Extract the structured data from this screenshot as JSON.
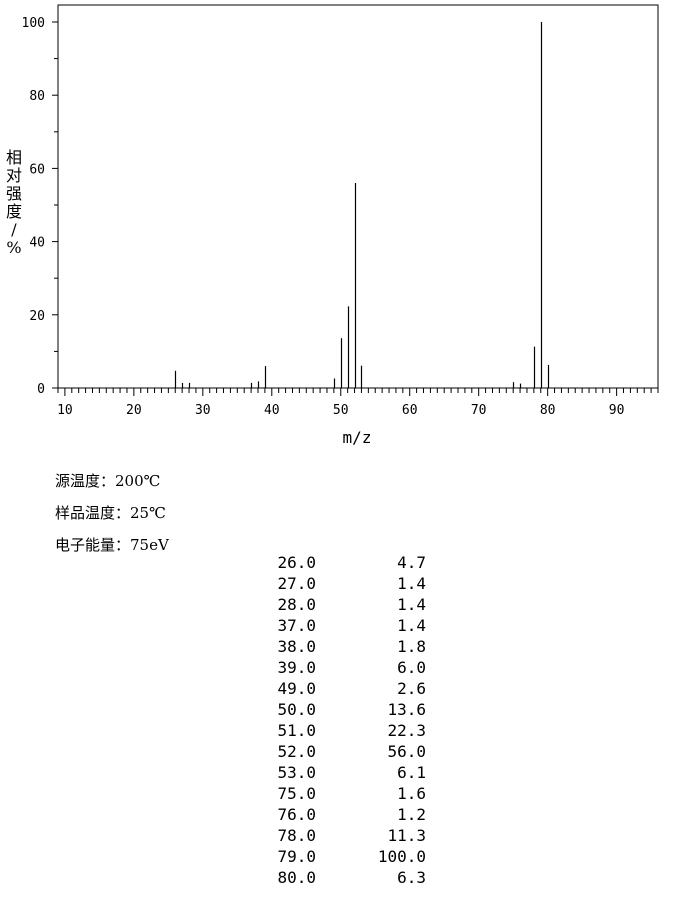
{
  "chart_data": {
    "type": "bar",
    "xlabel": "m/z",
    "ylabel": "相对强度/%",
    "xlim": [
      9,
      96
    ],
    "ylim": [
      0,
      100
    ],
    "x_ticks": [
      10,
      20,
      30,
      40,
      50,
      60,
      70,
      80,
      90
    ],
    "y_ticks": [
      0,
      20,
      40,
      60,
      80,
      100
    ],
    "grid": false,
    "bar_color": "#000000",
    "peaks": [
      {
        "mz": 26.0,
        "intensity": 4.7
      },
      {
        "mz": 27.0,
        "intensity": 1.4
      },
      {
        "mz": 28.0,
        "intensity": 1.4
      },
      {
        "mz": 37.0,
        "intensity": 1.4
      },
      {
        "mz": 38.0,
        "intensity": 1.8
      },
      {
        "mz": 39.0,
        "intensity": 6.0
      },
      {
        "mz": 49.0,
        "intensity": 2.6
      },
      {
        "mz": 50.0,
        "intensity": 13.6
      },
      {
        "mz": 51.0,
        "intensity": 22.3
      },
      {
        "mz": 52.0,
        "intensity": 56.0
      },
      {
        "mz": 53.0,
        "intensity": 6.1
      },
      {
        "mz": 75.0,
        "intensity": 1.6
      },
      {
        "mz": 76.0,
        "intensity": 1.2
      },
      {
        "mz": 78.0,
        "intensity": 11.3
      },
      {
        "mz": 79.0,
        "intensity": 100.0
      },
      {
        "mz": 80.0,
        "intensity": 6.3
      }
    ]
  },
  "conditions": {
    "source_temp": "源温度：200℃",
    "sample_temp": "样品温度：25℃",
    "electron_energy": "电子能量：75eV"
  },
  "peak_table": [
    [
      "26.0",
      "4.7"
    ],
    [
      "27.0",
      "1.4"
    ],
    [
      "28.0",
      "1.4"
    ],
    [
      "37.0",
      "1.4"
    ],
    [
      "38.0",
      "1.8"
    ],
    [
      "39.0",
      "6.0"
    ],
    [
      "49.0",
      "2.6"
    ],
    [
      "50.0",
      "13.6"
    ],
    [
      "51.0",
      "22.3"
    ],
    [
      "52.0",
      "56.0"
    ],
    [
      "53.0",
      "6.1"
    ],
    [
      "75.0",
      "1.6"
    ],
    [
      "76.0",
      "1.2"
    ],
    [
      "78.0",
      "11.3"
    ],
    [
      "79.0",
      "100.0"
    ],
    [
      "80.0",
      "6.3"
    ]
  ]
}
